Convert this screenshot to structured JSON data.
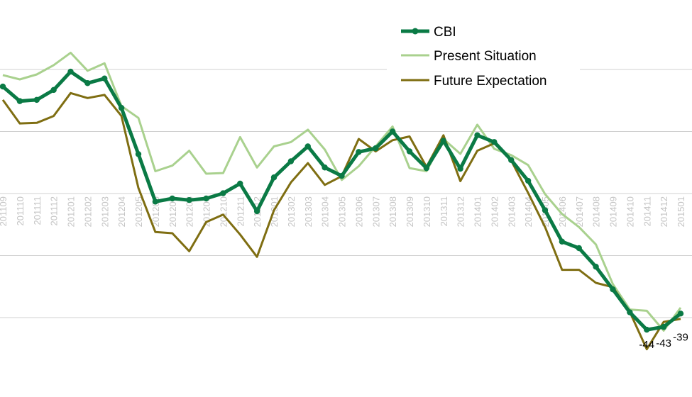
{
  "chart_data": {
    "type": "line",
    "x": [
      "201109",
      "201110",
      "201111",
      "201112",
      "201201",
      "201202",
      "201203",
      "201204",
      "201205",
      "201206",
      "201207",
      "201208",
      "201209",
      "201210",
      "201211",
      "201212",
      "201301",
      "201302",
      "201303",
      "201304",
      "201305",
      "201306",
      "201307",
      "201308",
      "201309",
      "201310",
      "201311",
      "201312",
      "201401",
      "201402",
      "201403",
      "201404",
      "201405",
      "201406",
      "201407",
      "201408",
      "201409",
      "201410",
      "201411",
      "201412",
      "201501"
    ],
    "ylim": [
      -50,
      50
    ],
    "gridlines": [
      -40,
      -20,
      0,
      20,
      40
    ],
    "grid": true,
    "legend_position": "top-right",
    "series": [
      {
        "name": "CBI",
        "color": "#0a7a45",
        "markers": true,
        "values": [
          34.5,
          29.8,
          30.2,
          33.4,
          39.3,
          35.6,
          37.1,
          27.6,
          12.7,
          -2.6,
          -1.6,
          -2.1,
          -1.6,
          0.1,
          3.2,
          -5.7,
          5.2,
          10.4,
          15.2,
          8.4,
          5.7,
          13.4,
          14.6,
          20.0,
          13.6,
          8.2,
          17.0,
          8.0,
          18.8,
          16.6,
          10.8,
          4.1,
          -5.4,
          -15.5,
          -17.6,
          -23.6,
          -30.9,
          -38.3,
          -43.9,
          -43.0,
          -38.7
        ],
        "point_labels": [
          {
            "index": 38,
            "text": "-44"
          },
          {
            "index": 39,
            "text": "-43"
          },
          {
            "index": 40,
            "text": "-39"
          }
        ]
      },
      {
        "name": "Present Situation",
        "color": "#a9d18e",
        "markers": false,
        "values": [
          38.2,
          36.8,
          38.4,
          41.4,
          45.4,
          39.6,
          42.0,
          28.2,
          24.4,
          7.2,
          9.0,
          13.8,
          6.4,
          6.6,
          18.2,
          8.4,
          15.2,
          16.6,
          20.6,
          14.2,
          4.4,
          8.8,
          15.2,
          21.6,
          8.2,
          7.2,
          17.6,
          12.8,
          22.2,
          14.4,
          12.4,
          9.2,
          -0.2,
          -6.6,
          -10.8,
          -16.4,
          -29.2,
          -37.4,
          -37.8,
          -44.2,
          -36.8
        ],
        "point_labels": []
      },
      {
        "name": "Future Expectation",
        "color": "#7f6e12",
        "markers": false,
        "values": [
          30.2,
          22.6,
          22.8,
          25.0,
          32.4,
          30.8,
          31.8,
          25.0,
          1.8,
          -12.4,
          -12.8,
          -18.6,
          -9.2,
          -6.8,
          -13.2,
          -20.4,
          -5.4,
          3.6,
          9.8,
          2.8,
          5.6,
          17.6,
          13.6,
          17.2,
          18.4,
          8.6,
          18.8,
          4.0,
          13.8,
          16.2,
          10.6,
          0.2,
          -10.8,
          -24.6,
          -24.6,
          -28.8,
          -30.2,
          -38.2,
          -50.2,
          -41.4,
          -40.4
        ],
        "point_labels": []
      }
    ]
  }
}
